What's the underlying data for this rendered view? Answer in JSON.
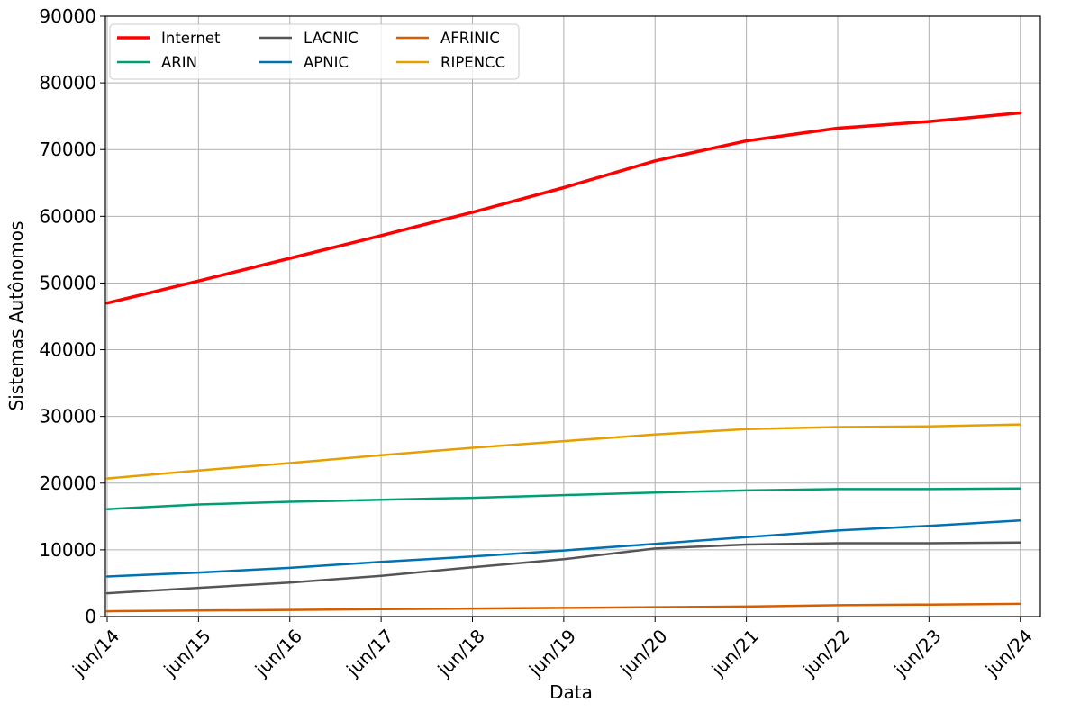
{
  "chart_data": {
    "type": "line",
    "title": "",
    "xlabel": "Data",
    "ylabel": "Sistemas Autônomos",
    "x": [
      "jun/14",
      "jun/15",
      "jun/16",
      "jun/17",
      "jun/18",
      "jun/19",
      "jun/20",
      "jun/21",
      "jun/22",
      "jun/23",
      "jun/24"
    ],
    "xlim": [
      0,
      10.2
    ],
    "ylim": [
      0,
      90000
    ],
    "yticks": [
      "0",
      "10000",
      "20000",
      "30000",
      "40000",
      "50000",
      "60000",
      "70000",
      "80000",
      "90000"
    ],
    "grid": true,
    "legend_position": "top-left",
    "legend_columns": 3,
    "series": [
      {
        "name": "Internet",
        "color": "#ff0000",
        "width": 3.5,
        "values": [
          47000,
          50300,
          53700,
          57100,
          60600,
          64300,
          68300,
          71300,
          73200,
          74200,
          75500
        ]
      },
      {
        "name": "ARIN",
        "color": "#009e73",
        "width": 2.5,
        "values": [
          16100,
          16800,
          17200,
          17500,
          17800,
          18200,
          18600,
          18900,
          19100,
          19100,
          19200
        ]
      },
      {
        "name": "LACNIC",
        "color": "#555555",
        "width": 2.5,
        "values": [
          3500,
          4300,
          5100,
          6100,
          7400,
          8600,
          10200,
          10800,
          11000,
          11000,
          11100
        ]
      },
      {
        "name": "APNIC",
        "color": "#0072b2",
        "width": 2.5,
        "values": [
          6000,
          6600,
          7300,
          8200,
          9000,
          9900,
          10900,
          11900,
          12900,
          13600,
          14400
        ]
      },
      {
        "name": "AFRINIC",
        "color": "#d55e00",
        "width": 2.5,
        "values": [
          800,
          900,
          1000,
          1100,
          1200,
          1300,
          1400,
          1500,
          1700,
          1800,
          1900
        ]
      },
      {
        "name": "RIPENCC",
        "color": "#e69f00",
        "width": 2.5,
        "values": [
          20700,
          21900,
          23000,
          24200,
          25300,
          26300,
          27300,
          28100,
          28400,
          28500,
          28800
        ]
      }
    ]
  }
}
